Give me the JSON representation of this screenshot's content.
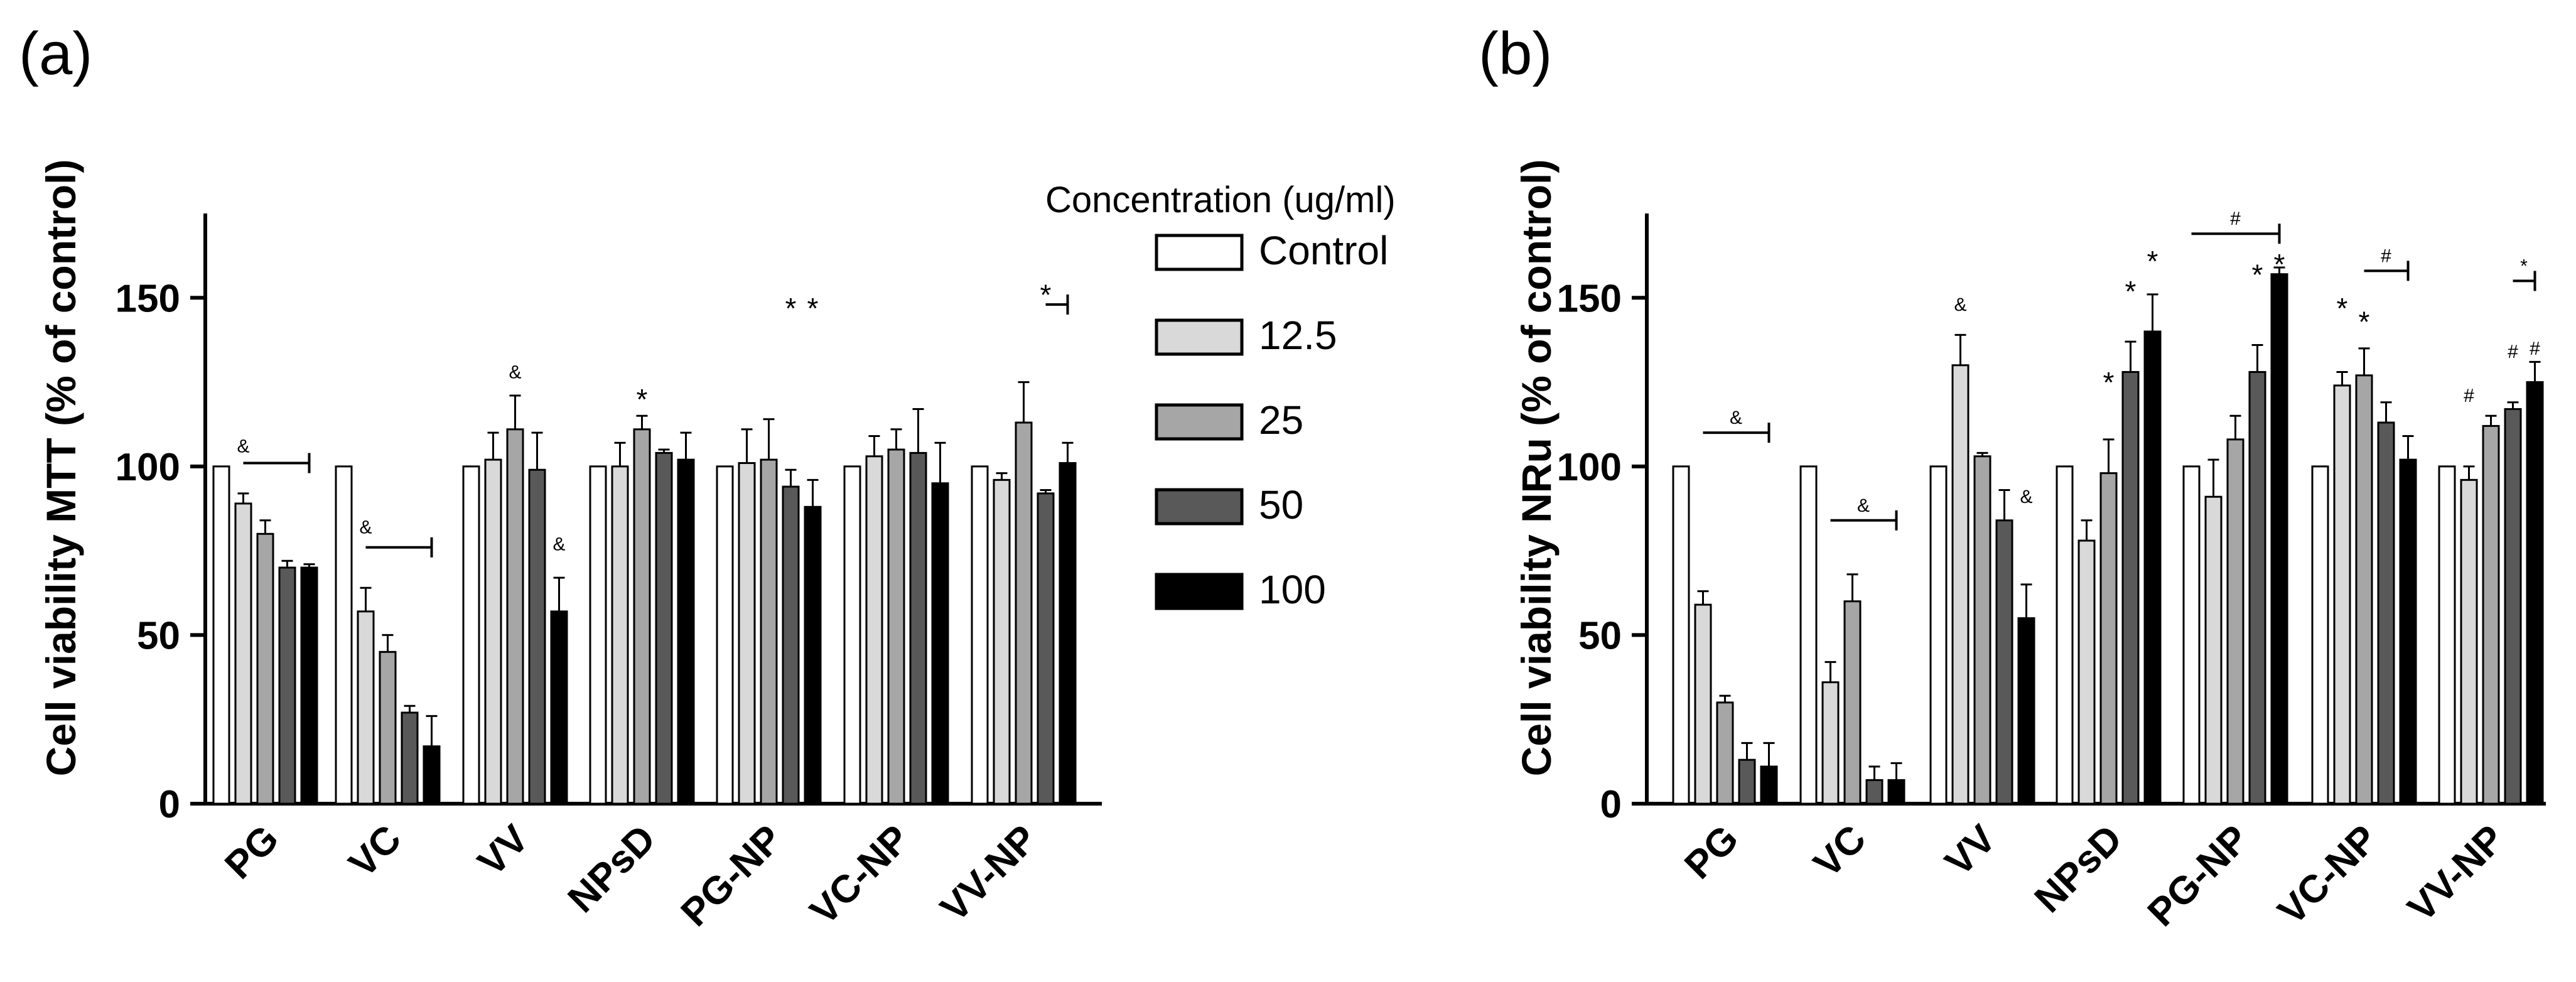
{
  "legend": {
    "title": "Concentration  (ug/ml)",
    "entries": [
      {
        "label": "Control",
        "color": "#ffffff"
      },
      {
        "label": "12.5",
        "color": "#d9d9d9"
      },
      {
        "label": "25",
        "color": "#a6a6a6"
      },
      {
        "label": "50",
        "color": "#595959"
      },
      {
        "label": "100",
        "color": "#000000"
      }
    ]
  },
  "chart_data": [
    {
      "type": "bar",
      "panel_label": "(a)",
      "ylabel": "Cell viability MTT (% of control)",
      "ylim": [
        0,
        175
      ],
      "yticks": [
        "0",
        "50",
        "100",
        "150"
      ],
      "categories": [
        "PG",
        "VC",
        "VV",
        "NPsD",
        "PG-NP",
        "VC-NP",
        "VV-NP"
      ],
      "series": [
        {
          "name": "Control",
          "values": [
            100,
            100,
            100,
            100,
            100,
            100,
            100
          ],
          "errors": [
            0,
            0,
            0,
            0,
            0,
            0,
            0
          ]
        },
        {
          "name": "12.5",
          "values": [
            89,
            57,
            102,
            100,
            101,
            103,
            96
          ],
          "errors": [
            3,
            7,
            8,
            7,
            10,
            6,
            2
          ]
        },
        {
          "name": "25",
          "values": [
            80,
            45,
            111,
            111,
            102,
            105,
            113
          ],
          "errors": [
            4,
            5,
            10,
            4,
            12,
            6,
            12
          ]
        },
        {
          "name": "50",
          "values": [
            70,
            27,
            99,
            104,
            94,
            104,
            92
          ],
          "errors": [
            2,
            2,
            11,
            1,
            5,
            13,
            1
          ]
        },
        {
          "name": "100",
          "values": [
            70,
            17,
            57,
            102,
            88,
            95,
            101
          ],
          "errors": [
            1,
            9,
            10,
            8,
            8,
            12,
            6
          ]
        }
      ],
      "annotations": [
        {
          "text": "&",
          "group": 0,
          "series": 1,
          "value": 106
        },
        {
          "text": "&",
          "group": 1,
          "series": 1,
          "value": 82
        },
        {
          "text": "&",
          "group": 2,
          "series": 2,
          "value": 128
        },
        {
          "text": "&",
          "group": 2,
          "series": 4,
          "value": 77
        },
        {
          "text": "*",
          "group": 3,
          "series": 2,
          "value": 121
        },
        {
          "text": "*",
          "group": 4,
          "series": 3,
          "value": 148
        },
        {
          "text": "*",
          "group": 4,
          "series": 4,
          "value": 148
        },
        {
          "text": "*",
          "group": 6,
          "series": 3,
          "value": 152
        }
      ],
      "brackets": [
        {
          "group": 0,
          "from_series": 1,
          "to_series": 4,
          "value": 101
        },
        {
          "group": 1,
          "from_series": 1,
          "to_series": 4,
          "value": 76
        },
        {
          "group": 6,
          "from_series": 3,
          "to_series": 4,
          "value": 148
        }
      ]
    },
    {
      "type": "bar",
      "panel_label": "(b)",
      "ylabel": "Cell viability NRu (% of control)",
      "ylim": [
        0,
        175
      ],
      "yticks": [
        "0",
        "50",
        "100",
        "150"
      ],
      "categories": [
        "PG",
        "VC",
        "VV",
        "NPsD",
        "PG-NP",
        "VC-NP",
        "VV-NP"
      ],
      "series": [
        {
          "name": "Control",
          "values": [
            100,
            100,
            100,
            100,
            100,
            100,
            100
          ],
          "errors": [
            0,
            0,
            0,
            0,
            0,
            0,
            0
          ]
        },
        {
          "name": "12.5",
          "values": [
            59,
            36,
            130,
            78,
            91,
            124,
            96
          ],
          "errors": [
            4,
            6,
            9,
            6,
            11,
            4,
            4
          ]
        },
        {
          "name": "25",
          "values": [
            30,
            60,
            103,
            98,
            108,
            127,
            112
          ],
          "errors": [
            2,
            8,
            1,
            10,
            7,
            8,
            3
          ]
        },
        {
          "name": "50",
          "values": [
            13,
            7,
            84,
            128,
            128,
            113,
            117
          ],
          "errors": [
            5,
            4,
            9,
            9,
            8,
            6,
            2
          ]
        },
        {
          "name": "100",
          "values": [
            11,
            7,
            55,
            140,
            157,
            102,
            125
          ],
          "errors": [
            7,
            5,
            10,
            11,
            2,
            7,
            6
          ]
        }
      ],
      "annotations": [
        {
          "text": "&",
          "group": 2,
          "series": 1,
          "value": 148
        },
        {
          "text": "&",
          "group": 2,
          "series": 4,
          "value": 91
        },
        {
          "text": "*",
          "group": 3,
          "series": 2,
          "value": 126
        },
        {
          "text": "*",
          "group": 3,
          "series": 3,
          "value": 153
        },
        {
          "text": "*",
          "group": 3,
          "series": 4,
          "value": 162
        },
        {
          "text": "*",
          "group": 4,
          "series": 3,
          "value": 158
        },
        {
          "text": "*",
          "group": 4,
          "series": 4,
          "value": 161
        },
        {
          "text": "*",
          "group": 5,
          "series": 1,
          "value": 148
        },
        {
          "text": "*",
          "group": 5,
          "series": 2,
          "value": 144
        },
        {
          "text": "#",
          "group": 6,
          "series": 1,
          "value": 121
        },
        {
          "text": "#",
          "group": 6,
          "series": 3,
          "value": 134
        },
        {
          "text": "#",
          "group": 6,
          "series": 4,
          "value": 135
        }
      ],
      "brackets": [
        {
          "group": 0,
          "from_series": 1,
          "to_series": 4,
          "value": 110,
          "text": "&"
        },
        {
          "group": 1,
          "from_series": 1,
          "to_series": 4,
          "value": 84,
          "text": "&"
        },
        {
          "group": 4,
          "from_series": 0,
          "to_series": 4,
          "value": 169,
          "text": "#"
        },
        {
          "group": 5,
          "from_series": 2,
          "to_series": 4,
          "value": 158,
          "text": "#"
        },
        {
          "group": 6,
          "from_series": 3,
          "to_series": 4,
          "value": 155,
          "text": "*"
        }
      ]
    }
  ]
}
